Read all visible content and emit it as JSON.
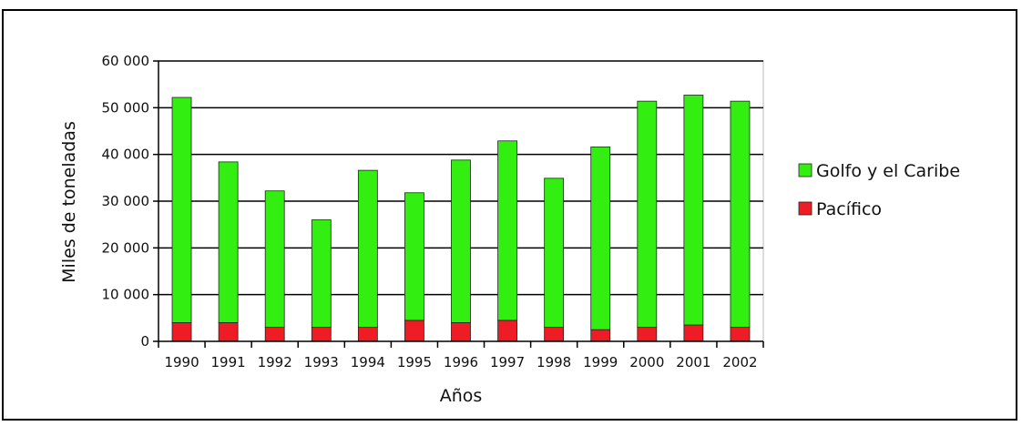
{
  "chart_data": {
    "type": "bar",
    "stacked": true,
    "categories": [
      "1990",
      "1991",
      "1992",
      "1993",
      "1994",
      "1995",
      "1996",
      "1997",
      "1998",
      "1999",
      "2000",
      "2001",
      "2002"
    ],
    "series": [
      {
        "name": "Pacífico",
        "color": "#ee1c24",
        "values": [
          4000,
          4000,
          3000,
          3000,
          3000,
          4500,
          4000,
          4500,
          3000,
          2500,
          3000,
          3500,
          3000
        ]
      },
      {
        "name": "Golfo y el Caribe",
        "color": "#33ee11",
        "values": [
          48200,
          34400,
          29200,
          23000,
          33600,
          27300,
          34800,
          38400,
          31900,
          39100,
          48400,
          49200,
          48400
        ]
      }
    ],
    "legend_order": [
      "Golfo y el Caribe",
      "Pacífico"
    ],
    "legend_position": "right",
    "xlabel": "Años",
    "ylabel": "Miles de toneladas",
    "ylim": [
      0,
      60000
    ],
    "yticks": [
      0,
      10000,
      20000,
      30000,
      40000,
      50000,
      60000
    ],
    "ytick_labels": [
      "0",
      "10 000",
      "20 000",
      "30 000",
      "40 000",
      "50 000",
      "60 000"
    ],
    "grid": "horizontal",
    "plot_background": "#ffffff",
    "gridline_color": "#000000"
  }
}
